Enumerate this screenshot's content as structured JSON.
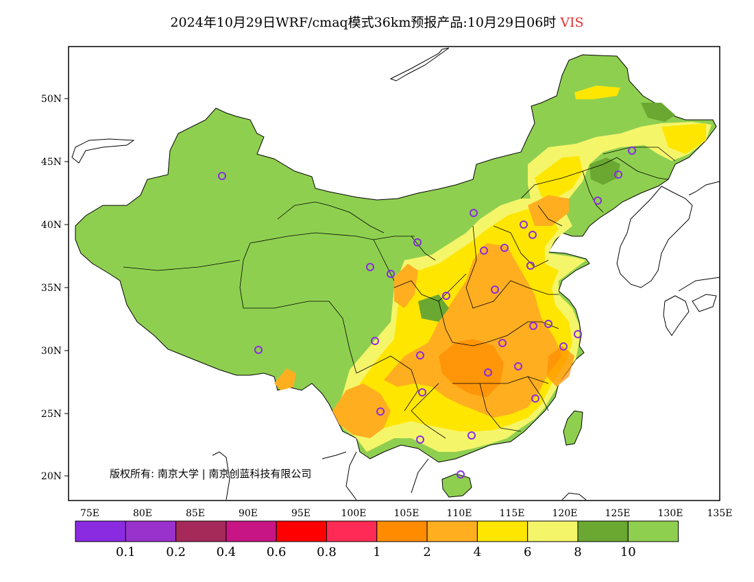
{
  "title": {
    "main": "2024年10月29日WRF/cmaq模式36km预报产品:10月29日06时",
    "variable": "VIS",
    "variable_color": "#e03030"
  },
  "axes": {
    "lat_labels": [
      "50N",
      "45N",
      "40N",
      "35N",
      "30N",
      "25N",
      "20N"
    ],
    "lon_labels": [
      "75E",
      "80E",
      "85E",
      "90E",
      "95E",
      "100E",
      "105E",
      "110E",
      "115E",
      "120E",
      "125E",
      "130E",
      "135E"
    ]
  },
  "copyright": "版权所有: 南京大学 | 南京创蓝科技有限公司",
  "colorbar": {
    "colors": [
      "#8a2be2",
      "#9932cc",
      "#a52a5a",
      "#c71585",
      "#ff0000",
      "#ff2a55",
      "#ff8c00",
      "#ffae20",
      "#ffe600",
      "#f5f56a",
      "#6aa832",
      "#8fcf50"
    ],
    "labels": [
      "0.1",
      "0.2",
      "0.4",
      "0.6",
      "0.8",
      "1",
      "2",
      "4",
      "6",
      "8",
      "10"
    ]
  },
  "legend_colors": {
    "land_high_vis": "#8fcf50",
    "dark_green": "#6aa832",
    "light_yellow": "#f5f56a",
    "yellow": "#ffe600",
    "light_orange": "#ffae20",
    "orange": "#ff8c00",
    "station_marker": "#8a2be2"
  }
}
